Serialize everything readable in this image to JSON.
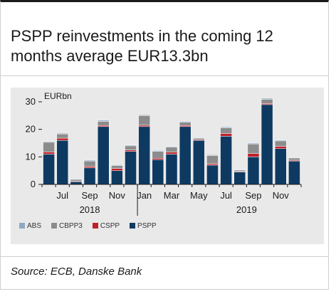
{
  "title": "PSPP reinvestments in the coming 12 months average EUR13.3bn",
  "source": "Source: ECB, Danske Bank",
  "colors": {
    "ABS": "#8fa9c4",
    "CBPP3": "#8c8c8c",
    "CSPP": "#c0202a",
    "PSPP": "#0e3a62"
  },
  "chart_data": {
    "type": "bar",
    "stacked": true,
    "unit_label": "EURbn",
    "ylim": [
      0,
      30
    ],
    "yticks": [
      0,
      10,
      20,
      30
    ],
    "grid": false,
    "legend_position": "bottom-left",
    "categories": [
      "Jun 2018",
      "Jul 2018",
      "Aug 2018",
      "Sep 2018",
      "Oct 2018",
      "Nov 2018",
      "Dec 2018",
      "Jan 2019",
      "Feb 2019",
      "Mar 2019",
      "Apr 2019",
      "May 2019",
      "Jun 2019",
      "Jul 2019",
      "Aug 2019",
      "Sep 2019",
      "Oct 2019",
      "Nov 2019",
      "Dec 2019"
    ],
    "x_tick_labels": [
      "Jul",
      "Sep",
      "Nov",
      "Jan",
      "Mar",
      "May",
      "Jul",
      "Sep",
      "Nov"
    ],
    "year_labels": [
      "2018",
      "2019"
    ],
    "series": [
      {
        "name": "PSPP",
        "values": [
          11,
          16,
          1,
          6,
          21,
          5,
          12,
          21,
          9,
          11,
          21,
          16,
          7,
          17.5,
          4.5,
          10,
          29,
          13,
          8.5
        ]
      },
      {
        "name": "CSPP",
        "values": [
          0.8,
          0.8,
          0.2,
          0.5,
          0.4,
          0.8,
          0.5,
          0.5,
          0.5,
          0.7,
          0.4,
          0.3,
          0.5,
          1,
          0.2,
          1.2,
          0.4,
          0.8,
          0.3
        ]
      },
      {
        "name": "CBPP3",
        "values": [
          3.5,
          1.5,
          0.6,
          2,
          1.5,
          1,
          1.5,
          3.5,
          2.5,
          1.8,
          1.2,
          0.5,
          3,
          2,
          0.5,
          3.5,
          1.5,
          2,
          0.8
        ]
      },
      {
        "name": "ABS",
        "values": [
          0.3,
          0.3,
          0.2,
          0.3,
          0.4,
          0.3,
          0.3,
          0.3,
          0.3,
          0.3,
          0.3,
          0.2,
          0.3,
          0.4,
          0.2,
          0.3,
          0.4,
          0.3,
          0.2
        ]
      }
    ]
  }
}
